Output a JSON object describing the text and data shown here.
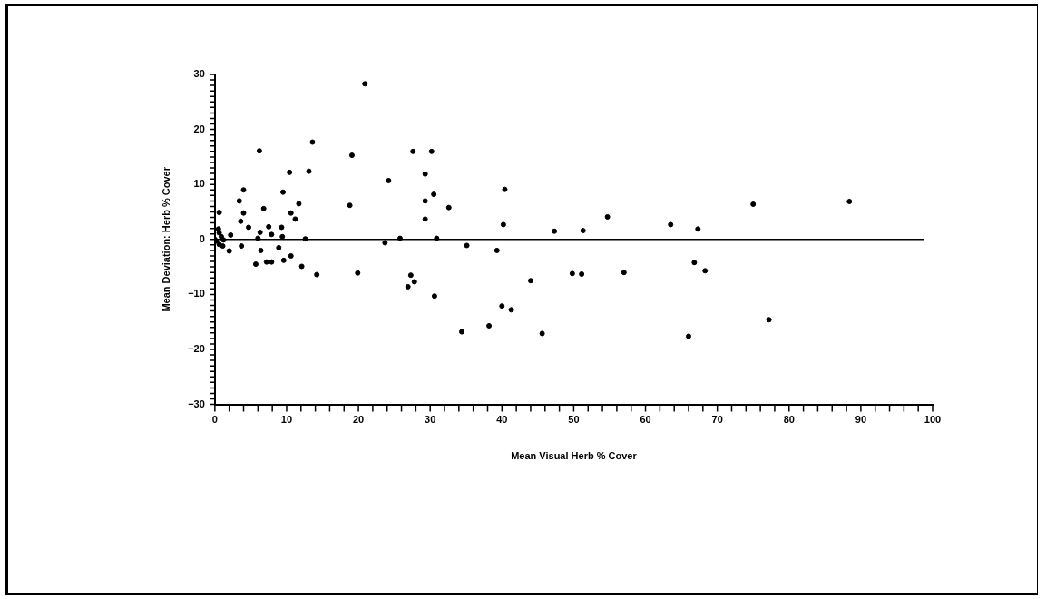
{
  "chart_data": {
    "type": "scatter",
    "xlabel": "Mean Visual Herb % Cover",
    "ylabel": "Mean Deviation: Herb % Cover",
    "x": [
      20.9,
      6.2,
      13.6,
      19.1,
      10.4,
      13.1,
      4.0,
      9.5,
      3.4,
      18.8,
      11.7,
      0.6,
      4.0,
      6.8,
      10.6,
      11.2,
      3.6,
      4.7,
      7.5,
      9.3,
      0.5,
      0.6,
      2.2,
      0.9,
      6.3,
      7.9,
      9.4,
      6.0,
      12.6,
      0,
      0.2,
      1.2,
      0.6,
      1.1,
      2.0,
      3.7,
      6.4,
      8.9,
      10.6,
      5.7,
      7.2,
      7.9,
      9.6,
      12.1,
      14.2,
      19.9,
      27.6,
      30.2,
      29.3,
      24.2,
      40.4,
      29.3,
      30.5,
      32.6,
      29.3,
      40.2,
      47.3,
      51.3,
      25.8,
      30.9,
      23.7,
      35.1,
      39.3,
      27.3,
      27.8,
      26.9,
      30.6,
      44.0,
      49.8,
      51.1,
      40.0,
      41.3,
      34.4,
      38.2,
      45.6,
      54.7,
      63.5,
      67.3,
      75.0,
      88.4,
      57.0,
      66.8,
      68.3,
      66.0,
      77.2
    ],
    "values": [
      28.3,
      16.1,
      17.7,
      15.3,
      12.2,
      12.4,
      9.0,
      8.6,
      7.0,
      6.2,
      6.5,
      4.9,
      4.8,
      5.6,
      4.8,
      3.7,
      3.3,
      2.2,
      2.3,
      2.2,
      1.9,
      1.2,
      0.8,
      0.5,
      1.3,
      0.9,
      0.5,
      0.2,
      0.1,
      0,
      -0.3,
      -0.1,
      -0.9,
      -1.2,
      -2.1,
      -1.2,
      -2.0,
      -1.5,
      -3.0,
      -4.5,
      -4.1,
      -4.1,
      -3.8,
      -4.9,
      -6.4,
      -6.1,
      16.0,
      16.0,
      11.9,
      10.7,
      9.1,
      7.0,
      8.2,
      5.8,
      3.7,
      2.7,
      1.5,
      1.6,
      0.2,
      0.2,
      -0.6,
      -1.1,
      -2.0,
      -6.5,
      -7.7,
      -8.6,
      -10.3,
      -7.5,
      -6.2,
      -6.3,
      -12.1,
      -12.8,
      -16.8,
      -15.7,
      -17.1,
      4.1,
      2.7,
      1.9,
      6.4,
      6.9,
      -6.0,
      -4.2,
      -5.7,
      -17.6,
      -14.6
    ],
    "color": "#000000",
    "marker": "circle",
    "xlim": [
      0,
      100
    ],
    "xticks": [
      0,
      10,
      20,
      30,
      40,
      50,
      60,
      70,
      80,
      90,
      100
    ],
    "ylim": [
      -30,
      30
    ],
    "yticks": [
      -30,
      -20,
      -10,
      0,
      10,
      20,
      30
    ],
    "ref_lines": [
      {
        "axis": "y",
        "value": 0,
        "color": "#000000"
      }
    ]
  }
}
